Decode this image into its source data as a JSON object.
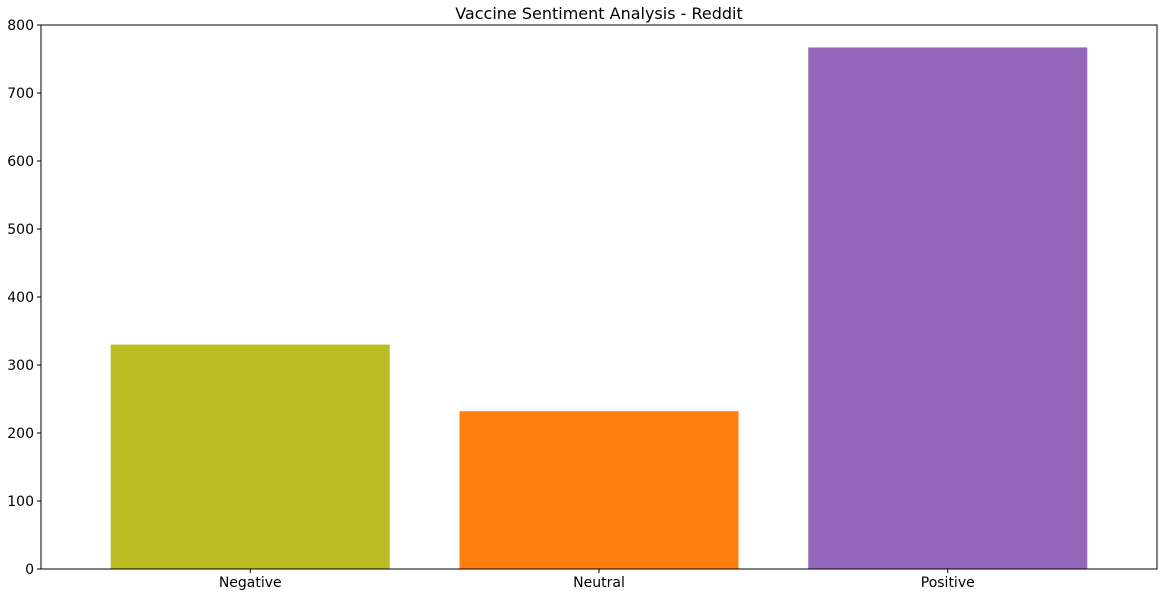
{
  "chart_data": {
    "type": "bar",
    "title": "Vaccine Sentiment Analysis - Reddit",
    "xlabel": "",
    "ylabel": "",
    "categories": [
      "Negative",
      "Neutral",
      "Positive"
    ],
    "values": [
      330,
      232,
      767
    ],
    "colors": [
      "#bcbd22",
      "#ff7f0e",
      "#9467bd"
    ],
    "ylim": [
      0,
      800
    ],
    "yticks": [
      0,
      100,
      200,
      300,
      400,
      500,
      600,
      700,
      800
    ],
    "grid": false,
    "legend": "none"
  }
}
